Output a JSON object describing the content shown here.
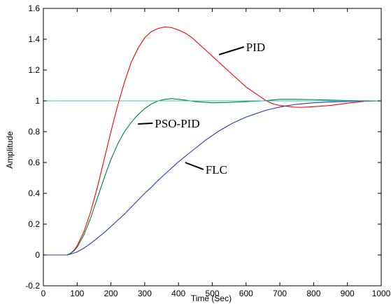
{
  "chart_data": {
    "type": "line",
    "title": "",
    "xlabel": "Time (Sec)",
    "ylabel": "Amplitude",
    "xlim": [
      0,
      1000
    ],
    "ylim": [
      -0.2,
      1.6
    ],
    "xticks": [
      0,
      100,
      200,
      300,
      400,
      500,
      600,
      700,
      800,
      900,
      1000
    ],
    "yticks": [
      -0.2,
      0,
      0.2,
      0.4,
      0.6,
      0.8,
      1,
      1.2,
      1.4,
      1.6
    ],
    "ytick_labels": [
      "-0.2",
      "0",
      "0.2",
      "0.4",
      "0.6",
      "0.8",
      "1",
      "1.2",
      "1.4",
      "1.6"
    ],
    "grid": false,
    "legend": "none",
    "series": [
      {
        "name": "PID",
        "color": "#ff0000",
        "x": [
          0,
          70,
          80,
          90,
          100,
          120,
          140,
          160,
          180,
          200,
          220,
          240,
          260,
          280,
          300,
          320,
          340,
          360,
          380,
          400,
          420,
          440,
          460,
          480,
          500,
          520,
          540,
          560,
          580,
          600,
          620,
          640,
          660,
          680,
          700,
          720,
          740,
          760,
          780,
          800,
          850,
          900,
          950,
          1000
        ],
        "y": [
          0,
          0,
          0.01,
          0.03,
          0.06,
          0.15,
          0.28,
          0.44,
          0.62,
          0.8,
          0.97,
          1.12,
          1.25,
          1.34,
          1.41,
          1.45,
          1.47,
          1.48,
          1.475,
          1.46,
          1.44,
          1.41,
          1.37,
          1.33,
          1.29,
          1.25,
          1.21,
          1.17,
          1.13,
          1.09,
          1.06,
          1.03,
          1.0,
          0.98,
          0.97,
          0.965,
          0.96,
          0.958,
          0.96,
          0.962,
          0.97,
          0.985,
          0.997,
          1.0
        ]
      },
      {
        "name": "PSO-PID",
        "color": "#008040",
        "x": [
          0,
          70,
          80,
          90,
          100,
          120,
          140,
          160,
          180,
          200,
          220,
          240,
          260,
          280,
          300,
          320,
          340,
          360,
          380,
          400,
          420,
          450,
          500,
          550,
          600,
          650,
          700,
          750,
          800,
          850,
          900,
          950,
          1000
        ],
        "y": [
          0,
          0,
          0.01,
          0.025,
          0.05,
          0.13,
          0.24,
          0.37,
          0.5,
          0.62,
          0.72,
          0.8,
          0.86,
          0.91,
          0.95,
          0.98,
          1.0,
          1.01,
          1.015,
          1.01,
          1.005,
          0.995,
          0.988,
          0.99,
          0.995,
          1.0,
          1.01,
          1.01,
          1.008,
          1.005,
          1.002,
          1.001,
          1.0
        ]
      },
      {
        "name": "FLC",
        "color": "#2a3fa8",
        "x": [
          0,
          70,
          80,
          100,
          120,
          140,
          160,
          180,
          200,
          220,
          240,
          260,
          280,
          300,
          320,
          340,
          360,
          380,
          400,
          420,
          440,
          460,
          480,
          500,
          520,
          540,
          560,
          580,
          600,
          620,
          640,
          660,
          680,
          700,
          720,
          740,
          760,
          780,
          800,
          850,
          900,
          950,
          1000
        ],
        "y": [
          0,
          0,
          0.005,
          0.02,
          0.045,
          0.075,
          0.11,
          0.145,
          0.185,
          0.225,
          0.265,
          0.31,
          0.355,
          0.4,
          0.44,
          0.485,
          0.525,
          0.565,
          0.605,
          0.64,
          0.675,
          0.71,
          0.745,
          0.775,
          0.805,
          0.83,
          0.855,
          0.875,
          0.895,
          0.91,
          0.925,
          0.94,
          0.95,
          0.96,
          0.968,
          0.975,
          0.98,
          0.984,
          0.988,
          0.993,
          0.996,
          0.998,
          1.0
        ]
      },
      {
        "name": "",
        "color": "#2ec4c4",
        "x": [
          0,
          1000
        ],
        "y": [
          1,
          1
        ]
      }
    ],
    "annotations": [
      {
        "text": "PID",
        "x": 600,
        "y": 1.35,
        "arrow_to": [
          520,
          1.3
        ]
      },
      {
        "text": "PSO-PID",
        "x": 330,
        "y": 0.855,
        "arrow_to": [
          280,
          0.85
        ]
      },
      {
        "text": "FLC",
        "x": 480,
        "y": 0.555,
        "arrow_to": [
          420,
          0.6
        ]
      }
    ]
  }
}
